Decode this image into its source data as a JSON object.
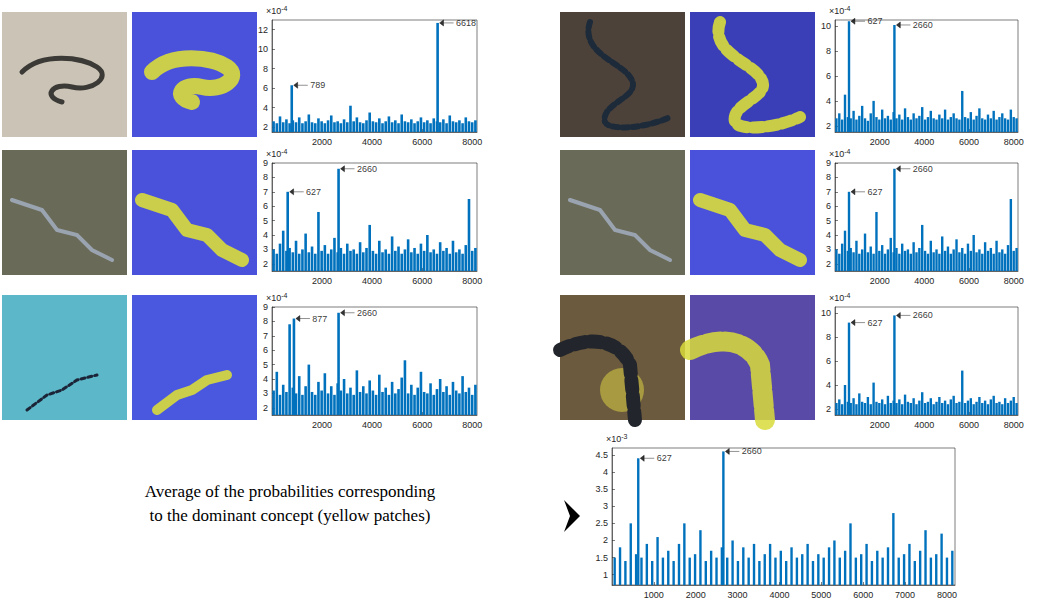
{
  "caption": "Average of the probabilities corresponding to the dominant concept (yellow patches)",
  "chart_data": [
    {
      "type": "bar",
      "color": "#0072bd",
      "grid": false,
      "y_scale_label": {
        "base": "×10",
        "exponent": "-4"
      },
      "xlim": [
        0,
        8192
      ],
      "xticks": [
        2000,
        4000,
        6000,
        8000
      ],
      "ylim": [
        1.5,
        13
      ],
      "yticks": [
        2,
        4,
        6,
        8,
        10,
        12
      ],
      "x": [
        64,
        192,
        320,
        448,
        576,
        704,
        789,
        832,
        960,
        1088,
        1216,
        1344,
        1472,
        1600,
        1728,
        1856,
        1984,
        2112,
        2240,
        2368,
        2496,
        2624,
        2752,
        2880,
        3008,
        3136,
        3264,
        3392,
        3520,
        3648,
        3776,
        3904,
        4032,
        4160,
        4288,
        4416,
        4544,
        4672,
        4800,
        4928,
        5056,
        5184,
        5312,
        5440,
        5568,
        5696,
        5824,
        5952,
        6080,
        6208,
        6336,
        6464,
        6592,
        6618,
        6720,
        6848,
        6976,
        7104,
        7232,
        7360,
        7488,
        7616,
        7744,
        7872,
        8000,
        8128
      ],
      "values": [
        2.6,
        2.4,
        3.1,
        2.5,
        2.8,
        2.4,
        6.3,
        2.7,
        2.5,
        3.0,
        2.4,
        2.6,
        3.3,
        2.5,
        2.4,
        2.9,
        2.6,
        2.4,
        2.7,
        3.2,
        2.5,
        2.6,
        2.4,
        2.8,
        2.5,
        4.2,
        2.6,
        3.0,
        2.5,
        2.4,
        2.7,
        3.5,
        2.6,
        2.5,
        2.9,
        2.4,
        2.6,
        3.1,
        2.5,
        2.7,
        2.4,
        3.3,
        2.6,
        2.5,
        2.8,
        2.4,
        2.6,
        3.0,
        2.5,
        2.7,
        2.4,
        2.9,
        2.6,
        12.7,
        2.5,
        2.8,
        2.4,
        3.2,
        2.6,
        2.5,
        2.7,
        2.4,
        3.0,
        2.6,
        2.5,
        2.7
      ],
      "annotations": [
        {
          "x": 789,
          "y": 6.3,
          "label": "789"
        },
        {
          "x": 6618,
          "y": 12.7,
          "label": "6618"
        }
      ]
    },
    {
      "type": "bar",
      "color": "#0072bd",
      "grid": false,
      "y_scale_label": {
        "base": "×10",
        "exponent": "-4"
      },
      "xlim": [
        0,
        8192
      ],
      "xticks": [
        2000,
        4000,
        6000,
        8000
      ],
      "ylim": [
        1.5,
        10.5
      ],
      "yticks": [
        2,
        4,
        6,
        8,
        10
      ],
      "x": [
        64,
        192,
        320,
        448,
        576,
        627,
        704,
        832,
        960,
        1088,
        1216,
        1344,
        1472,
        1600,
        1728,
        1856,
        1984,
        2112,
        2240,
        2368,
        2496,
        2624,
        2660,
        2752,
        2880,
        3008,
        3136,
        3264,
        3392,
        3520,
        3648,
        3776,
        3904,
        4032,
        4160,
        4288,
        4416,
        4544,
        4672,
        4800,
        4928,
        5056,
        5184,
        5312,
        5440,
        5568,
        5696,
        5824,
        5952,
        6080,
        6208,
        6336,
        6464,
        6592,
        6720,
        6848,
        6976,
        7104,
        7232,
        7360,
        7488,
        7616,
        7744,
        7872,
        8000,
        8128
      ],
      "values": [
        2.6,
        3.0,
        2.5,
        4.5,
        2.7,
        10.4,
        2.6,
        3.2,
        2.5,
        2.8,
        3.6,
        2.6,
        2.4,
        3.0,
        4.0,
        2.7,
        2.5,
        3.3,
        2.6,
        2.8,
        2.5,
        3.1,
        10.1,
        2.6,
        2.9,
        2.5,
        3.4,
        2.7,
        2.5,
        3.0,
        2.6,
        2.8,
        3.5,
        2.5,
        2.7,
        3.2,
        2.6,
        2.5,
        2.9,
        2.6,
        3.3,
        2.5,
        2.7,
        3.0,
        2.6,
        2.5,
        4.8,
        2.7,
        2.6,
        3.1,
        2.5,
        2.8,
        3.4,
        2.6,
        2.5,
        2.9,
        2.6,
        3.2,
        2.5,
        2.7,
        3.0,
        2.6,
        2.5,
        3.3,
        2.7,
        2.6
      ],
      "annotations": [
        {
          "x": 627,
          "y": 10.4,
          "label": "627"
        },
        {
          "x": 2660,
          "y": 10.1,
          "label": "2660"
        }
      ]
    },
    {
      "type": "bar",
      "color": "#0072bd",
      "grid": false,
      "y_scale_label": {
        "base": "×10",
        "exponent": "-4"
      },
      "xlim": [
        0,
        8192
      ],
      "xticks": [
        2000,
        4000,
        6000,
        8000
      ],
      "ylim": [
        1.5,
        9
      ],
      "yticks": [
        2,
        3,
        4,
        5,
        6,
        7,
        8,
        9
      ],
      "x": [
        64,
        192,
        320,
        448,
        576,
        627,
        704,
        832,
        960,
        1088,
        1216,
        1344,
        1472,
        1600,
        1728,
        1856,
        1984,
        2112,
        2240,
        2368,
        2496,
        2624,
        2660,
        2752,
        2880,
        3008,
        3136,
        3264,
        3392,
        3520,
        3648,
        3776,
        3904,
        4032,
        4160,
        4288,
        4416,
        4544,
        4672,
        4800,
        4928,
        5056,
        5184,
        5312,
        5440,
        5568,
        5696,
        5824,
        5952,
        6080,
        6208,
        6336,
        6464,
        6592,
        6720,
        6848,
        6976,
        7104,
        7232,
        7360,
        7488,
        7616,
        7744,
        7872,
        8000,
        8128
      ],
      "values": [
        3.0,
        2.7,
        3.4,
        4.3,
        2.9,
        7.0,
        3.1,
        2.8,
        3.6,
        2.7,
        3.0,
        4.1,
        2.8,
        3.2,
        2.7,
        5.6,
        2.9,
        3.3,
        2.7,
        3.0,
        3.8,
        2.8,
        8.6,
        3.1,
        2.7,
        3.4,
        2.9,
        3.0,
        2.7,
        3.5,
        2.8,
        3.1,
        4.7,
        2.9,
        2.7,
        3.6,
        2.8,
        3.0,
        2.7,
        3.9,
        2.9,
        3.2,
        2.7,
        3.0,
        3.7,
        2.8,
        3.1,
        2.7,
        3.4,
        2.9,
        4.0,
        2.8,
        3.0,
        2.7,
        3.5,
        2.9,
        3.1,
        2.7,
        3.6,
        2.8,
        3.0,
        2.7,
        3.3,
        6.5,
        2.9,
        3.1
      ],
      "annotations": [
        {
          "x": 627,
          "y": 7.0,
          "label": "627"
        },
        {
          "x": 2660,
          "y": 8.6,
          "label": "2660"
        }
      ]
    },
    {
      "type": "bar",
      "color": "#0072bd",
      "grid": false,
      "y_scale_label": {
        "base": "×10",
        "exponent": "-4"
      },
      "xlim": [
        0,
        8192
      ],
      "xticks": [
        2000,
        4000,
        6000,
        8000
      ],
      "ylim": [
        1.5,
        9
      ],
      "yticks": [
        2,
        3,
        4,
        5,
        6,
        7,
        8,
        9
      ],
      "x": [
        64,
        192,
        320,
        448,
        576,
        627,
        704,
        832,
        960,
        1088,
        1216,
        1344,
        1472,
        1600,
        1728,
        1856,
        1984,
        2112,
        2240,
        2368,
        2496,
        2624,
        2660,
        2752,
        2880,
        3008,
        3136,
        3264,
        3392,
        3520,
        3648,
        3776,
        3904,
        4032,
        4160,
        4288,
        4416,
        4544,
        4672,
        4800,
        4928,
        5056,
        5184,
        5312,
        5440,
        5568,
        5696,
        5824,
        5952,
        6080,
        6208,
        6336,
        6464,
        6592,
        6720,
        6848,
        6976,
        7104,
        7232,
        7360,
        7488,
        7616,
        7744,
        7872,
        8000,
        8128
      ],
      "values": [
        3.0,
        2.7,
        3.4,
        4.3,
        2.9,
        7.0,
        3.1,
        2.8,
        3.6,
        2.7,
        3.0,
        4.1,
        2.8,
        3.2,
        2.7,
        5.6,
        2.9,
        3.3,
        2.7,
        3.0,
        3.8,
        2.8,
        8.6,
        3.1,
        2.7,
        3.4,
        2.9,
        3.0,
        2.7,
        3.5,
        2.8,
        3.1,
        4.7,
        2.9,
        2.7,
        3.6,
        2.8,
        3.0,
        2.7,
        3.9,
        2.9,
        3.2,
        2.7,
        3.0,
        3.7,
        2.8,
        3.1,
        2.7,
        3.4,
        2.9,
        4.0,
        2.8,
        3.0,
        2.7,
        3.5,
        2.9,
        3.1,
        2.7,
        3.6,
        2.8,
        3.0,
        2.7,
        3.3,
        6.5,
        2.9,
        3.1
      ],
      "annotations": [
        {
          "x": 627,
          "y": 7.0,
          "label": "627"
        },
        {
          "x": 2660,
          "y": 8.6,
          "label": "2660"
        }
      ]
    },
    {
      "type": "bar",
      "color": "#0072bd",
      "grid": false,
      "y_scale_label": {
        "base": "×10",
        "exponent": "-4"
      },
      "xlim": [
        0,
        8192
      ],
      "xticks": [
        2000,
        4000,
        6000,
        8000
      ],
      "ylim": [
        1.5,
        9
      ],
      "yticks": [
        2,
        3,
        4,
        5,
        6,
        7,
        8,
        9
      ],
      "x": [
        64,
        192,
        320,
        448,
        576,
        704,
        832,
        877,
        960,
        1088,
        1216,
        1344,
        1472,
        1600,
        1728,
        1856,
        1984,
        2112,
        2240,
        2368,
        2496,
        2624,
        2660,
        2752,
        2880,
        3008,
        3136,
        3264,
        3392,
        3520,
        3648,
        3776,
        3904,
        4032,
        4160,
        4288,
        4416,
        4544,
        4672,
        4800,
        4928,
        5056,
        5184,
        5312,
        5440,
        5568,
        5696,
        5824,
        5952,
        6080,
        6208,
        6336,
        6464,
        6592,
        6720,
        6848,
        6976,
        7104,
        7232,
        7360,
        7488,
        7616,
        7744,
        7872,
        8000,
        8128
      ],
      "values": [
        3.2,
        4.5,
        2.9,
        3.6,
        3.1,
        7.8,
        3.4,
        8.2,
        3.0,
        4.2,
        2.9,
        3.5,
        5.0,
        3.1,
        2.9,
        3.8,
        3.2,
        4.4,
        3.0,
        3.5,
        2.9,
        3.7,
        8.6,
        3.2,
        4.0,
        3.0,
        3.4,
        2.9,
        4.6,
        3.1,
        3.5,
        3.0,
        3.9,
        3.2,
        2.9,
        4.3,
        3.1,
        3.4,
        2.9,
        3.8,
        3.0,
        3.3,
        4.1,
        5.3,
        3.0,
        3.6,
        2.9,
        3.4,
        4.5,
        3.1,
        3.0,
        3.7,
        2.9,
        3.3,
        4.0,
        3.1,
        3.5,
        2.9,
        3.8,
        3.2,
        3.0,
        4.2,
        3.1,
        3.4,
        2.9,
        3.6
      ],
      "annotations": [
        {
          "x": 877,
          "y": 8.2,
          "label": "877"
        },
        {
          "x": 2660,
          "y": 8.6,
          "label": "2660"
        }
      ]
    },
    {
      "type": "bar",
      "color": "#0072bd",
      "grid": false,
      "y_scale_label": {
        "base": "×10",
        "exponent": "-4"
      },
      "xlim": [
        0,
        8192
      ],
      "xticks": [
        2000,
        4000,
        6000,
        8000
      ],
      "ylim": [
        1.5,
        10.5
      ],
      "yticks": [
        2,
        4,
        6,
        8,
        10
      ],
      "x": [
        64,
        192,
        320,
        448,
        576,
        627,
        704,
        832,
        960,
        1088,
        1216,
        1344,
        1472,
        1600,
        1728,
        1856,
        1984,
        2112,
        2240,
        2368,
        2496,
        2624,
        2660,
        2752,
        2880,
        3008,
        3136,
        3264,
        3392,
        3520,
        3648,
        3776,
        3904,
        4032,
        4160,
        4288,
        4416,
        4544,
        4672,
        4800,
        4928,
        5056,
        5184,
        5312,
        5440,
        5568,
        5696,
        5824,
        5952,
        6080,
        6208,
        6336,
        6464,
        6592,
        6720,
        6848,
        6976,
        7104,
        7232,
        7360,
        7488,
        7616,
        7744,
        7872,
        8000,
        8128
      ],
      "values": [
        2.5,
        2.8,
        2.4,
        4.0,
        2.6,
        9.2,
        2.5,
        2.9,
        2.4,
        3.3,
        2.6,
        2.5,
        3.0,
        2.4,
        4.2,
        2.6,
        2.5,
        2.8,
        2.4,
        3.1,
        2.5,
        2.7,
        9.8,
        2.5,
        2.8,
        2.4,
        3.2,
        2.6,
        2.5,
        2.9,
        2.4,
        2.7,
        3.4,
        2.5,
        2.6,
        2.9,
        2.4,
        2.6,
        3.0,
        2.5,
        2.7,
        2.4,
        2.8,
        3.1,
        2.5,
        2.6,
        5.2,
        2.5,
        2.7,
        2.9,
        2.4,
        2.6,
        3.0,
        2.5,
        2.7,
        2.4,
        2.8,
        3.1,
        2.5,
        2.6,
        2.4,
        2.9,
        2.5,
        2.7,
        3.0,
        2.5
      ],
      "annotations": [
        {
          "x": 627,
          "y": 9.2,
          "label": "627"
        },
        {
          "x": 2660,
          "y": 9.8,
          "label": "2660"
        }
      ]
    },
    {
      "type": "bar",
      "color": "#0072bd",
      "grid": false,
      "y_scale_label": {
        "base": "×10",
        "exponent": "-3"
      },
      "xlim": [
        0,
        8192
      ],
      "xticks": [
        1000,
        2000,
        3000,
        4000,
        5000,
        6000,
        7000,
        8000
      ],
      "ylim": [
        0.7,
        4.7
      ],
      "yticks": [
        1,
        1.5,
        2,
        2.5,
        3,
        3.5,
        4,
        4.5
      ],
      "x": [
        64,
        192,
        320,
        448,
        576,
        627,
        704,
        832,
        960,
        1088,
        1216,
        1344,
        1472,
        1600,
        1728,
        1856,
        1984,
        2112,
        2240,
        2368,
        2496,
        2624,
        2660,
        2752,
        2880,
        3008,
        3136,
        3264,
        3392,
        3520,
        3648,
        3776,
        3904,
        4032,
        4160,
        4288,
        4416,
        4544,
        4672,
        4800,
        4928,
        5056,
        5184,
        5312,
        5440,
        5568,
        5696,
        5824,
        5952,
        6080,
        6208,
        6336,
        6464,
        6592,
        6720,
        6848,
        6976,
        7104,
        7232,
        7360,
        7488,
        7616,
        7744,
        7872,
        8000,
        8128
      ],
      "values": [
        1.5,
        1.8,
        1.4,
        2.5,
        1.6,
        4.4,
        1.5,
        1.9,
        1.4,
        2.1,
        1.5,
        1.7,
        1.4,
        1.9,
        2.5,
        1.5,
        1.6,
        2.3,
        1.4,
        1.7,
        1.5,
        1.8,
        4.6,
        1.5,
        2.0,
        1.4,
        1.8,
        1.5,
        1.9,
        1.4,
        1.6,
        1.9,
        1.5,
        1.7,
        1.4,
        1.8,
        1.5,
        1.6,
        1.9,
        1.4,
        1.6,
        1.5,
        1.8,
        2.0,
        1.5,
        1.7,
        2.5,
        1.5,
        1.6,
        1.9,
        1.4,
        1.7,
        1.5,
        1.8,
        2.8,
        1.5,
        1.6,
        1.9,
        1.4,
        1.7,
        2.3,
        1.5,
        1.6,
        2.2,
        1.5,
        1.7
      ],
      "annotations": [
        {
          "x": 627,
          "y": 4.4,
          "label": "627"
        },
        {
          "x": 2660,
          "y": 4.6,
          "label": "2660"
        }
      ]
    }
  ]
}
